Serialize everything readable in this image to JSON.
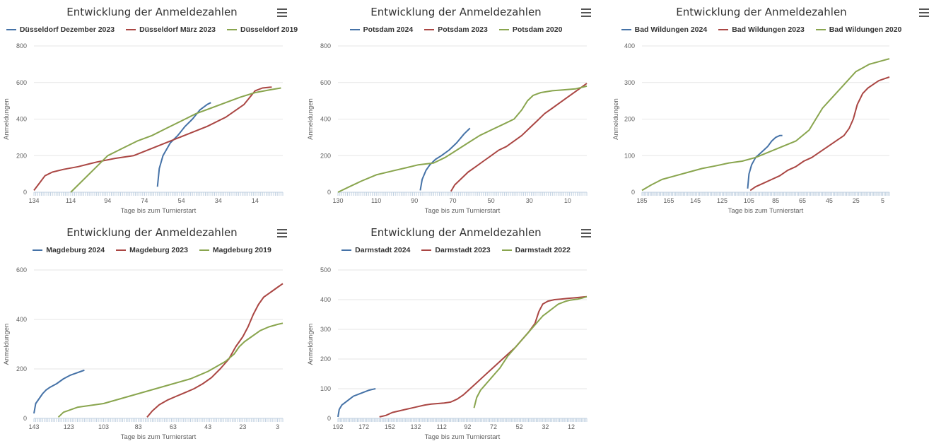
{
  "chart_data": [
    {
      "type": "line",
      "title": "Entwicklung der Anmeldezahlen",
      "xlabel": "Tage bis zum Turnierstart",
      "ylabel": "Anmeldungen",
      "xlim": [
        134,
        -1
      ],
      "ylim": [
        0,
        800
      ],
      "xticks": [
        "134",
        "114",
        "94",
        "74",
        "54",
        "34",
        "14"
      ],
      "yticks": [
        "0",
        "200",
        "400",
        "600",
        "800"
      ],
      "grid": true,
      "legend": "top",
      "series": [
        {
          "name": "Düsseldorf Dezember 2023",
          "color": "#4572A7",
          "x": [
            67,
            66,
            64,
            60,
            56,
            52,
            48,
            44,
            40,
            38
          ],
          "y": [
            30,
            130,
            200,
            270,
            310,
            360,
            400,
            450,
            480,
            490
          ]
        },
        {
          "name": "Düsseldorf März 2023",
          "color": "#AA4643",
          "x": [
            134,
            131,
            128,
            124,
            118,
            110,
            100,
            90,
            80,
            70,
            60,
            50,
            40,
            30,
            20,
            14,
            10,
            5
          ],
          "y": [
            10,
            50,
            90,
            110,
            125,
            140,
            165,
            185,
            200,
            240,
            280,
            320,
            360,
            410,
            480,
            555,
            570,
            575
          ]
        },
        {
          "name": "Düsseldorf 2019",
          "color": "#89A54E",
          "x": [
            114,
            108,
            100,
            94,
            86,
            78,
            70,
            62,
            54,
            46,
            38,
            30,
            22,
            14,
            6,
            0
          ],
          "y": [
            0,
            60,
            140,
            200,
            240,
            280,
            310,
            350,
            390,
            430,
            460,
            490,
            520,
            545,
            560,
            570
          ]
        }
      ]
    },
    {
      "type": "line",
      "title": "Entwicklung der Anmeldezahlen",
      "xlabel": "Tage bis zum Turnierstart",
      "ylabel": "Anmeldungen",
      "xlim": [
        130,
        0
      ],
      "ylim": [
        0,
        800
      ],
      "xticks": [
        "130",
        "110",
        "90",
        "70",
        "50",
        "30",
        "10"
      ],
      "yticks": [
        "0",
        "200",
        "400",
        "600",
        "800"
      ],
      "grid": true,
      "legend": "top",
      "series": [
        {
          "name": "Potsdam 2024",
          "color": "#4572A7",
          "x": [
            87,
            86,
            84,
            82,
            79,
            76,
            72,
            68,
            64,
            61
          ],
          "y": [
            10,
            70,
            120,
            150,
            180,
            200,
            230,
            270,
            320,
            350
          ]
        },
        {
          "name": "Potsdam 2023",
          "color": "#AA4643",
          "x": [
            71,
            69,
            66,
            62,
            58,
            54,
            50,
            46,
            42,
            38,
            34,
            30,
            26,
            22,
            18,
            14,
            10,
            6,
            2,
            0
          ],
          "y": [
            5,
            40,
            70,
            110,
            140,
            170,
            200,
            230,
            250,
            280,
            310,
            350,
            390,
            430,
            460,
            490,
            520,
            550,
            580,
            595
          ]
        },
        {
          "name": "Potsdam 2020",
          "color": "#89A54E",
          "x": [
            130,
            124,
            118,
            110,
            102,
            94,
            88,
            80,
            74,
            68,
            62,
            56,
            50,
            44,
            38,
            34,
            31,
            28,
            24,
            18,
            12,
            6,
            0
          ],
          "y": [
            0,
            30,
            60,
            95,
            115,
            135,
            150,
            160,
            190,
            230,
            270,
            310,
            340,
            370,
            400,
            450,
            500,
            530,
            545,
            555,
            560,
            565,
            580
          ]
        }
      ]
    },
    {
      "type": "line",
      "title": "Entwicklung der Anmeldezahlen",
      "xlabel": "Tage bis zum Turnierstart",
      "ylabel": "Anmeldungen",
      "xlim": [
        185,
        0
      ],
      "ylim": [
        0,
        400
      ],
      "xticks": [
        "185",
        "165",
        "145",
        "125",
        "105",
        "85",
        "65",
        "45",
        "25",
        "5"
      ],
      "yticks": [
        "0",
        "100",
        "200",
        "300",
        "400"
      ],
      "grid": true,
      "legend": "top",
      "series": [
        {
          "name": "Bad Wildungen 2024",
          "color": "#4572A7",
          "x": [
            106,
            105,
            103,
            100,
            97,
            94,
            91,
            88,
            85,
            82,
            80
          ],
          "y": [
            10,
            50,
            75,
            95,
            105,
            115,
            125,
            140,
            150,
            155,
            155
          ]
        },
        {
          "name": "Bad Wildungen 2023",
          "color": "#AA4643",
          "x": [
            104,
            100,
            94,
            88,
            82,
            76,
            70,
            64,
            58,
            52,
            46,
            40,
            34,
            30,
            27,
            24,
            20,
            16,
            12,
            8,
            4,
            0
          ],
          "y": [
            5,
            15,
            25,
            35,
            45,
            60,
            70,
            85,
            95,
            110,
            125,
            140,
            155,
            175,
            200,
            240,
            270,
            285,
            295,
            305,
            310,
            315
          ]
        },
        {
          "name": "Bad Wildungen 2020",
          "color": "#89A54E",
          "x": [
            185,
            178,
            170,
            160,
            150,
            140,
            130,
            120,
            110,
            100,
            90,
            80,
            70,
            60,
            55,
            50,
            45,
            40,
            35,
            30,
            25,
            20,
            15,
            10,
            5,
            0
          ],
          "y": [
            5,
            20,
            35,
            45,
            55,
            65,
            72,
            80,
            85,
            95,
            110,
            125,
            140,
            170,
            200,
            230,
            250,
            270,
            290,
            310,
            330,
            340,
            350,
            355,
            360,
            365
          ]
        }
      ]
    },
    {
      "type": "line",
      "title": "Entwicklung der Anmeldezahlen",
      "xlabel": "Tage bis zum Turnierstart",
      "ylabel": "Anmeldungen",
      "xlim": [
        143,
        0
      ],
      "ylim": [
        0,
        600
      ],
      "xticks": [
        "143",
        "123",
        "103",
        "83",
        "63",
        "43",
        "23",
        "3"
      ],
      "yticks": [
        "0",
        "200",
        "400",
        "600"
      ],
      "grid": true,
      "legend": "top",
      "series": [
        {
          "name": "Magdeburg 2024",
          "color": "#4572A7",
          "x": [
            143,
            142,
            140,
            138,
            136,
            134,
            130,
            126,
            122,
            118,
            116,
            114
          ],
          "y": [
            20,
            60,
            80,
            100,
            115,
            125,
            140,
            160,
            175,
            185,
            190,
            195
          ]
        },
        {
          "name": "Magdeburg 2023",
          "color": "#AA4643",
          "x": [
            78,
            75,
            71,
            66,
            61,
            56,
            51,
            46,
            41,
            36,
            31,
            27,
            23,
            20,
            17,
            14,
            11,
            7,
            3,
            0
          ],
          "y": [
            5,
            30,
            55,
            75,
            90,
            105,
            120,
            140,
            165,
            200,
            240,
            290,
            330,
            370,
            420,
            460,
            490,
            510,
            530,
            545
          ]
        },
        {
          "name": "Magdeburg 2019",
          "color": "#89A54E",
          "x": [
            129,
            126,
            122,
            118,
            113,
            108,
            103,
            98,
            93,
            88,
            83,
            78,
            73,
            68,
            63,
            58,
            53,
            48,
            43,
            38,
            33,
            28,
            25,
            22,
            18,
            13,
            8,
            3,
            0
          ],
          "y": [
            5,
            25,
            35,
            45,
            50,
            55,
            60,
            70,
            80,
            90,
            100,
            110,
            120,
            130,
            140,
            150,
            160,
            175,
            190,
            210,
            230,
            260,
            290,
            310,
            330,
            355,
            370,
            380,
            385
          ]
        }
      ]
    },
    {
      "type": "line",
      "title": "Entwicklung der Anmeldezahlen",
      "xlabel": "Tage bis zum Turnierstart",
      "ylabel": "Anmeldungen",
      "xlim": [
        192,
        0
      ],
      "ylim": [
        0,
        500
      ],
      "xticks": [
        "192",
        "172",
        "152",
        "132",
        "112",
        "92",
        "72",
        "52",
        "32",
        "12"
      ],
      "yticks": [
        "0",
        "100",
        "200",
        "300",
        "400",
        "500"
      ],
      "grid": true,
      "legend": "top",
      "series": [
        {
          "name": "Darmstadt 2024",
          "color": "#4572A7",
          "x": [
            192,
            191,
            189,
            186,
            183,
            180,
            177,
            174,
            171,
            168,
            165,
            163
          ],
          "y": [
            5,
            30,
            45,
            55,
            65,
            75,
            80,
            85,
            90,
            95,
            98,
            100
          ]
        },
        {
          "name": "Darmstadt 2023",
          "color": "#AA4643",
          "x": [
            160,
            155,
            150,
            145,
            140,
            135,
            130,
            125,
            120,
            115,
            110,
            105,
            100,
            95,
            90,
            85,
            80,
            75,
            70,
            65,
            60,
            55,
            50,
            45,
            40,
            37,
            34,
            30,
            25,
            20,
            15,
            10,
            5,
            0
          ],
          "y": [
            5,
            10,
            20,
            25,
            30,
            35,
            40,
            45,
            48,
            50,
            52,
            55,
            65,
            80,
            100,
            120,
            140,
            160,
            180,
            200,
            220,
            240,
            265,
            290,
            320,
            360,
            385,
            395,
            400,
            402,
            404,
            406,
            408,
            410
          ]
        },
        {
          "name": "Darmstadt 2022",
          "color": "#89A54E",
          "x": [
            87,
            85,
            82,
            79,
            76,
            73,
            70,
            67,
            64,
            61,
            58,
            55,
            52,
            49,
            46,
            43,
            40,
            37,
            34,
            31,
            28,
            25,
            22,
            19,
            16,
            13,
            10,
            7,
            4,
            0
          ],
          "y": [
            35,
            70,
            95,
            110,
            125,
            140,
            155,
            170,
            190,
            210,
            225,
            240,
            255,
            270,
            285,
            300,
            315,
            330,
            345,
            355,
            365,
            375,
            385,
            390,
            395,
            398,
            400,
            402,
            405,
            410
          ]
        }
      ]
    }
  ],
  "ui": {
    "menu_icon": "hamburger-menu-icon"
  }
}
